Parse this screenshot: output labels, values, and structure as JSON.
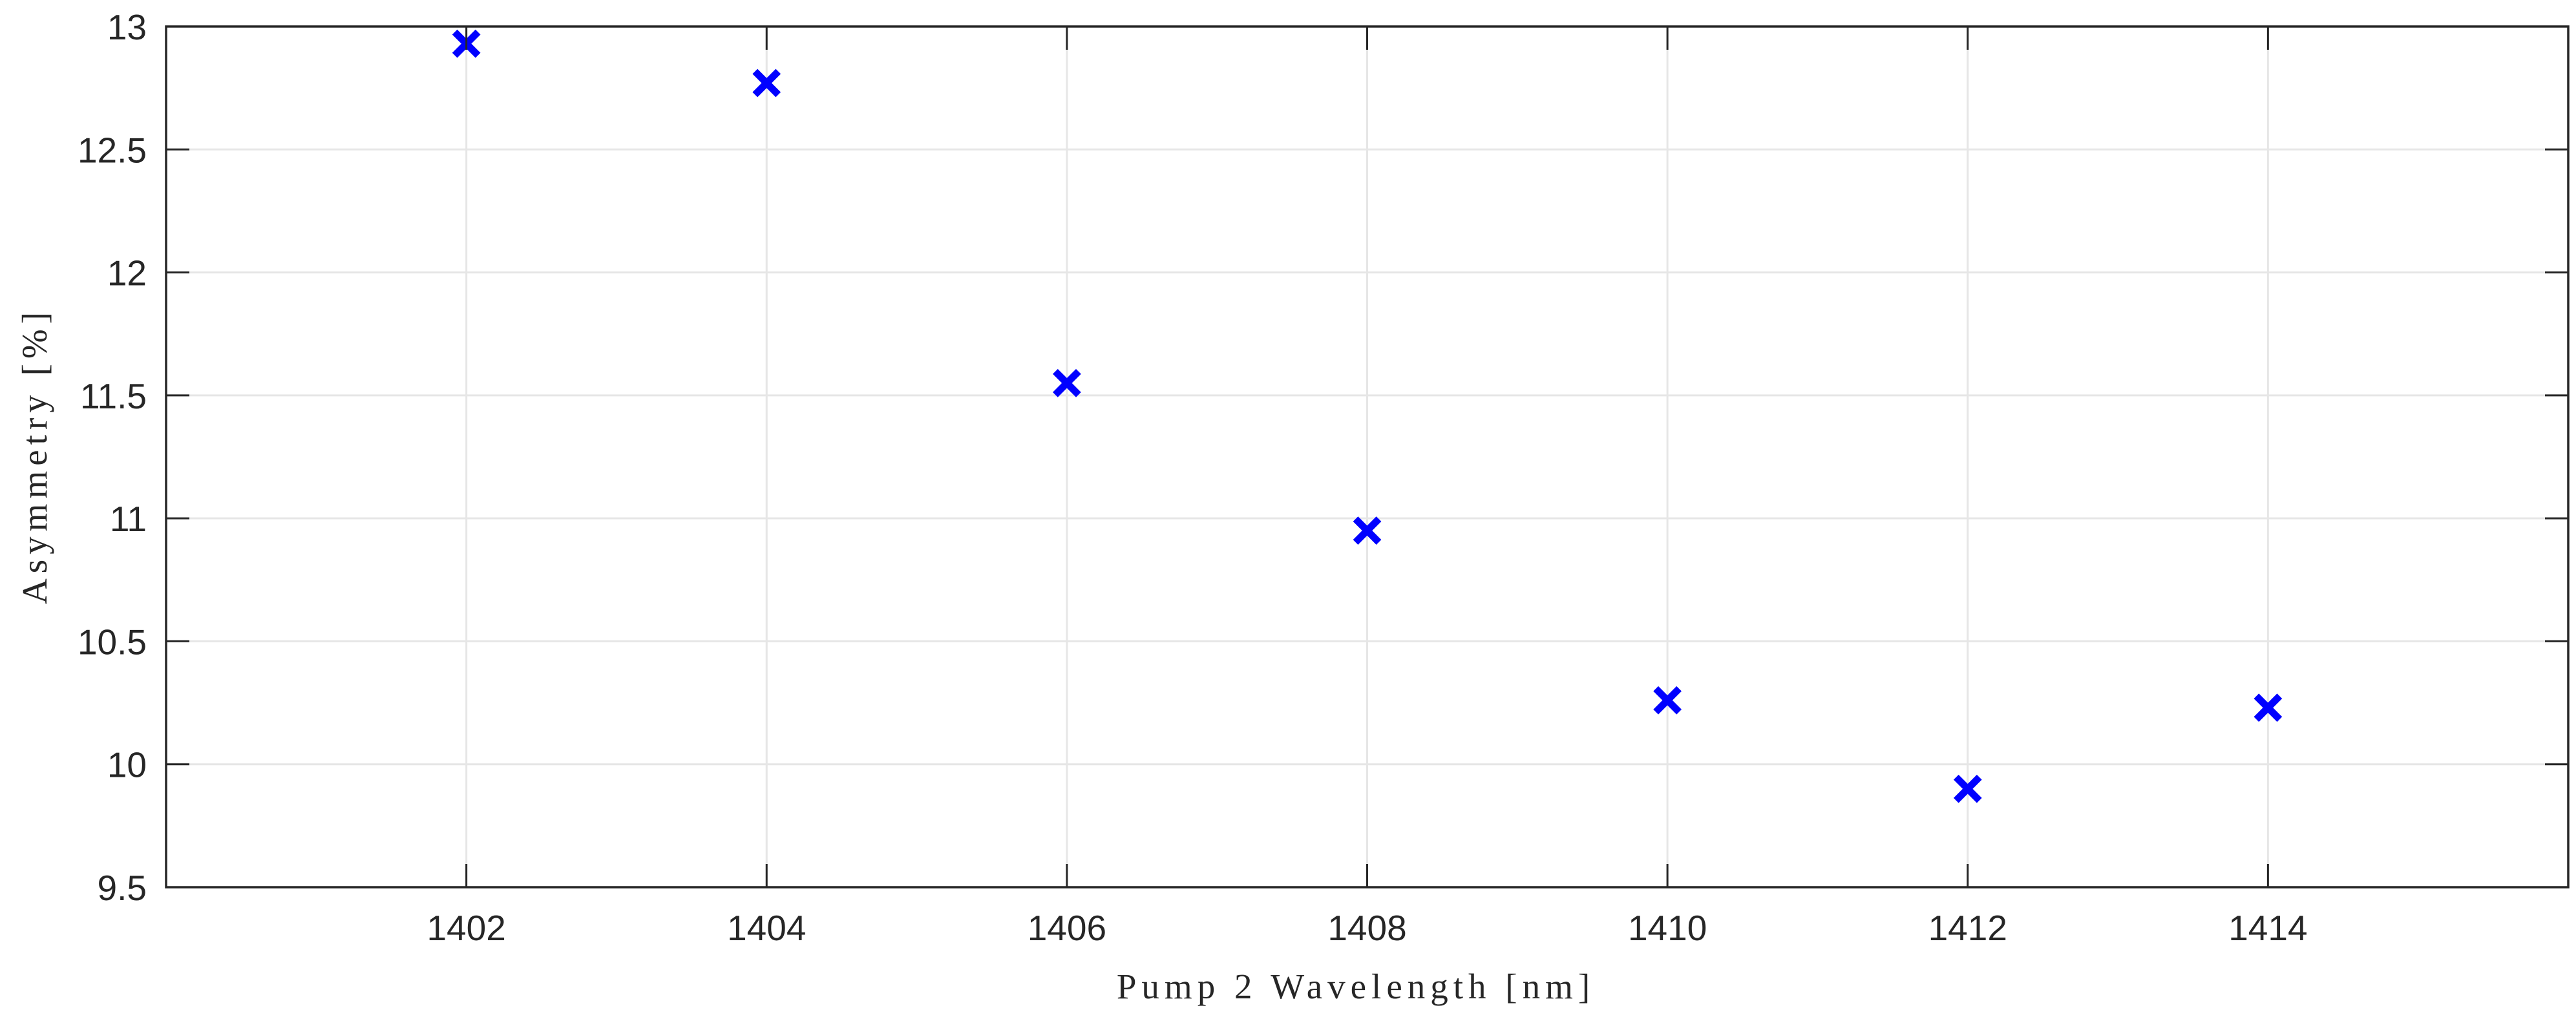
{
  "chart_data": {
    "type": "scatter",
    "title": "",
    "xlabel": "Pump 2 Wavelength [nm]",
    "ylabel": "Asymmetry [%]",
    "xlim": [
      1400,
      1416
    ],
    "ylim": [
      9.5,
      13
    ],
    "x_ticks": [
      "1402",
      "1404",
      "1406",
      "1408",
      "1410",
      "1412",
      "1414"
    ],
    "y_ticks": [
      "9.5",
      "10",
      "10.5",
      "11",
      "11.5",
      "12",
      "12.5",
      "13"
    ],
    "grid": true,
    "marker": "x",
    "marker_color": "#0000ff",
    "series": [
      {
        "x": [
          1402,
          1404,
          1406,
          1408,
          1410,
          1412,
          1414
        ],
        "y": [
          12.93,
          12.77,
          11.55,
          10.95,
          10.26,
          9.9,
          10.23
        ]
      }
    ]
  }
}
